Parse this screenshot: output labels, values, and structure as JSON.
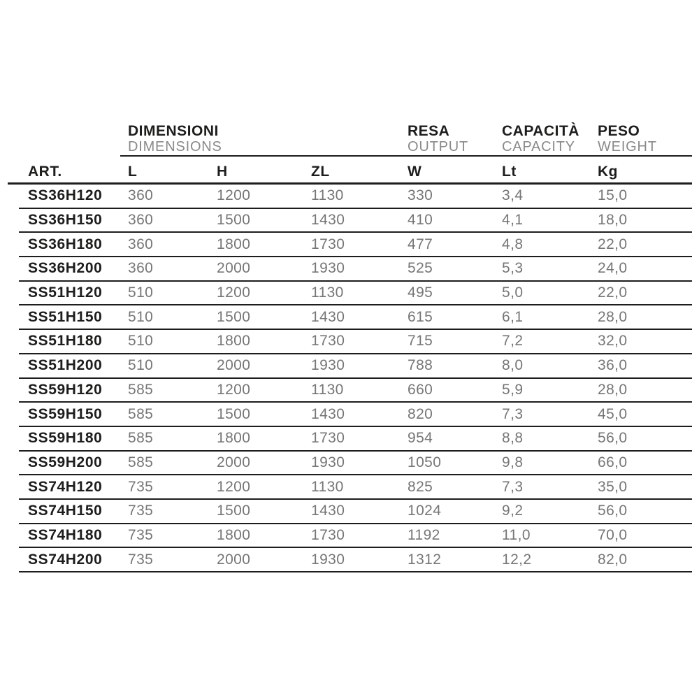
{
  "colors": {
    "background": "#ffffff",
    "text_dark": "#1d1d1b",
    "text_muted": "#767676",
    "text_subheader": "#8a8a8a",
    "rule": "#1d1d1b"
  },
  "table": {
    "group_headers": [
      {
        "primary": "DIMENSIONI",
        "secondary": "DIMENSIONS"
      },
      {
        "primary": "RESA",
        "secondary": "OUTPUT"
      },
      {
        "primary": "CAPACITÀ",
        "secondary": "CAPACITY"
      },
      {
        "primary": "PESO",
        "secondary": "WEIGHT"
      }
    ],
    "columns": [
      "ART.",
      "L",
      "H",
      "ZL",
      "W",
      "Lt",
      "Kg"
    ],
    "rows": [
      [
        "SS36H120",
        "360",
        "1200",
        "1130",
        "330",
        "3,4",
        "15,0"
      ],
      [
        "SS36H150",
        "360",
        "1500",
        "1430",
        "410",
        "4,1",
        "18,0"
      ],
      [
        "SS36H180",
        "360",
        "1800",
        "1730",
        "477",
        "4,8",
        "22,0"
      ],
      [
        "SS36H200",
        "360",
        "2000",
        "1930",
        "525",
        "5,3",
        "24,0"
      ],
      [
        "SS51H120",
        "510",
        "1200",
        "1130",
        "495",
        "5,0",
        "22,0"
      ],
      [
        "SS51H150",
        "510",
        "1500",
        "1430",
        "615",
        "6,1",
        "28,0"
      ],
      [
        "SS51H180",
        "510",
        "1800",
        "1730",
        "715",
        "7,2",
        "32,0"
      ],
      [
        "SS51H200",
        "510",
        "2000",
        "1930",
        "788",
        "8,0",
        "36,0"
      ],
      [
        "SS59H120",
        "585",
        "1200",
        "1130",
        "660",
        "5,9",
        "28,0"
      ],
      [
        "SS59H150",
        "585",
        "1500",
        "1430",
        "820",
        "7,3",
        "45,0"
      ],
      [
        "SS59H180",
        "585",
        "1800",
        "1730",
        "954",
        "8,8",
        "56,0"
      ],
      [
        "SS59H200",
        "585",
        "2000",
        "1930",
        "1050",
        "9,8",
        "66,0"
      ],
      [
        "SS74H120",
        "735",
        "1200",
        "1130",
        "825",
        "7,3",
        "35,0"
      ],
      [
        "SS74H150",
        "735",
        "1500",
        "1430",
        "1024",
        "9,2",
        "56,0"
      ],
      [
        "SS74H180",
        "735",
        "1800",
        "1730",
        "1192",
        "11,0",
        "70,0"
      ],
      [
        "SS74H200",
        "735",
        "2000",
        "1930",
        "1312",
        "12,2",
        "82,0"
      ]
    ]
  }
}
